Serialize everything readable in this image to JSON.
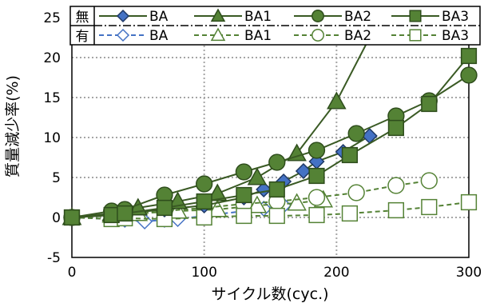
{
  "chart_data": {
    "type": "line",
    "xlabel": "サイクル数(cyc.)",
    "ylabel": "質量減少率(%)",
    "xlim": [
      0,
      300
    ],
    "ylim": [
      -5,
      25
    ],
    "xticks": [
      0,
      100,
      200,
      300
    ],
    "yticks": [
      -5,
      0,
      5,
      10,
      15,
      20,
      25
    ],
    "grid": true,
    "legend": {
      "placement": "top",
      "group_labels": [
        "無",
        "有"
      ]
    },
    "series": [
      {
        "name": "BA",
        "group": "無",
        "marker": "diamond",
        "filled": true,
        "dashed": false,
        "color": "#4472C4",
        "x": [
          0,
          30,
          40,
          70,
          100,
          130,
          145,
          160,
          175,
          185,
          205,
          225
        ],
        "y": [
          0,
          0.3,
          0.5,
          1.0,
          1.5,
          2.5,
          3.5,
          4.5,
          5.8,
          7.0,
          8.2,
          10.2
        ]
      },
      {
        "name": "BA1",
        "group": "無",
        "marker": "triangle",
        "filled": true,
        "dashed": false,
        "color": "#548235",
        "x": [
          0,
          30,
          50,
          80,
          110,
          140,
          170,
          200,
          225
        ],
        "y": [
          0,
          0.5,
          1.2,
          2.0,
          3.0,
          5.0,
          8.0,
          14.5,
          22.5
        ]
      },
      {
        "name": "BA2",
        "group": "無",
        "marker": "circle",
        "filled": true,
        "dashed": false,
        "color": "#548235",
        "x": [
          0,
          30,
          40,
          70,
          100,
          130,
          155,
          185,
          215,
          245,
          270,
          300
        ],
        "y": [
          0,
          0.8,
          1.0,
          2.8,
          4.2,
          5.7,
          6.9,
          8.4,
          10.5,
          12.7,
          14.6,
          17.8
        ]
      },
      {
        "name": "BA3",
        "group": "無",
        "marker": "square",
        "filled": true,
        "dashed": false,
        "color": "#548235",
        "x": [
          0,
          30,
          40,
          70,
          100,
          130,
          155,
          185,
          210,
          245,
          270,
          300
        ],
        "y": [
          0,
          0.3,
          0.5,
          1.2,
          2.0,
          2.8,
          3.5,
          5.2,
          7.8,
          11.2,
          14.2,
          20.2
        ]
      },
      {
        "name": "BA",
        "group": "有",
        "marker": "diamond",
        "filled": false,
        "dashed": true,
        "color": "#4472C4",
        "x": [
          0,
          30,
          40,
          55,
          70,
          80,
          100,
          130,
          145,
          160
        ],
        "y": [
          0,
          -0.2,
          -0.3,
          -0.5,
          -0.3,
          -0.2,
          0.2,
          0.8,
          1.1,
          1.5
        ]
      },
      {
        "name": "BA1",
        "group": "有",
        "marker": "triangle",
        "filled": false,
        "dashed": true,
        "color": "#548235",
        "x": [
          0,
          30,
          50,
          80,
          110,
          140,
          170,
          190
        ],
        "y": [
          0,
          0.3,
          0.5,
          0.8,
          1.0,
          1.5,
          1.8,
          2.2
        ]
      },
      {
        "name": "BA2",
        "group": "有",
        "marker": "circle",
        "filled": false,
        "dashed": true,
        "color": "#548235",
        "x": [
          0,
          30,
          40,
          70,
          100,
          130,
          155,
          185,
          215,
          245,
          270
        ],
        "y": [
          0,
          0.2,
          0.3,
          0.8,
          1.2,
          1.7,
          2.0,
          2.5,
          3.1,
          4.0,
          4.6
        ]
      },
      {
        "name": "BA3",
        "group": "有",
        "marker": "square",
        "filled": false,
        "dashed": true,
        "color": "#548235",
        "x": [
          0,
          30,
          40,
          70,
          100,
          130,
          155,
          185,
          210,
          245,
          270,
          300
        ],
        "y": [
          0,
          -0.2,
          -0.1,
          -0.2,
          0.0,
          0.2,
          0.2,
          0.3,
          0.5,
          0.9,
          1.3,
          1.9
        ]
      }
    ]
  }
}
